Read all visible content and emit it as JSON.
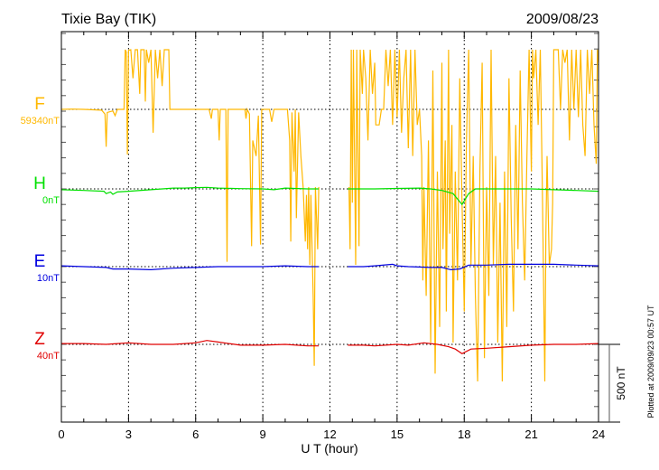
{
  "chart_data": {
    "type": "line",
    "title": "Tixie Bay (TIK)",
    "date": "2009/08/23",
    "xlabel": "U T (hour)",
    "xlim": [
      0,
      24
    ],
    "xticks": [
      "0",
      "3",
      "6",
      "9",
      "12",
      "15",
      "18",
      "21",
      "24"
    ],
    "scale_bar_label": "500 nT",
    "plotted_note": "Plotted at 2009/09/23 00:57 UT",
    "grid": true,
    "series": [
      {
        "name": "F",
        "baseline_label": "59340nT",
        "color": "#FFB800",
        "points": [
          [
            0,
            0
          ],
          [
            0.5,
            2
          ],
          [
            1,
            0
          ],
          [
            1.8,
            -5
          ],
          [
            1.95,
            -30
          ],
          [
            2.0,
            -240
          ],
          [
            2.05,
            -20
          ],
          [
            2.3,
            -10
          ],
          [
            2.4,
            -40
          ],
          [
            2.5,
            0
          ],
          [
            2.8,
            0
          ],
          [
            2.85,
            384
          ],
          [
            2.9,
            370
          ],
          [
            2.95,
            -290
          ],
          [
            3.0,
            380
          ],
          [
            3.1,
            384
          ],
          [
            3.2,
            200
          ],
          [
            3.3,
            384
          ],
          [
            3.4,
            384
          ],
          [
            3.5,
            100
          ],
          [
            3.55,
            384
          ],
          [
            3.7,
            384
          ],
          [
            3.75,
            50
          ],
          [
            3.8,
            384
          ],
          [
            3.9,
            300
          ],
          [
            4.0,
            384
          ],
          [
            4.1,
            -150
          ],
          [
            4.2,
            384
          ],
          [
            4.3,
            200
          ],
          [
            4.4,
            384
          ],
          [
            4.5,
            150
          ],
          [
            4.6,
            384
          ],
          [
            4.8,
            384
          ],
          [
            4.85,
            0
          ],
          [
            5,
            0
          ],
          [
            6,
            0
          ],
          [
            6.6,
            0
          ],
          [
            6.7,
            -60
          ],
          [
            6.75,
            0
          ],
          [
            7.0,
            0
          ],
          [
            7.05,
            -200
          ],
          [
            7.1,
            0
          ],
          [
            7.35,
            0
          ],
          [
            7.4,
            -980
          ],
          [
            7.45,
            0
          ],
          [
            8.2,
            0
          ],
          [
            8.25,
            -60
          ],
          [
            8.3,
            0
          ],
          [
            8.4,
            -30
          ],
          [
            8.5,
            -880
          ],
          [
            8.55,
            -200
          ],
          [
            8.7,
            -300
          ],
          [
            8.8,
            -40
          ],
          [
            8.9,
            -870
          ],
          [
            8.95,
            0
          ],
          [
            9.3,
            0
          ],
          [
            9.4,
            -80
          ],
          [
            9.5,
            0
          ],
          [
            10.1,
            0
          ],
          [
            10.2,
            -200
          ],
          [
            10.25,
            -850
          ],
          [
            10.3,
            -20
          ],
          [
            10.4,
            -400
          ],
          [
            10.45,
            0
          ],
          [
            10.5,
            -700
          ],
          [
            10.6,
            -20
          ],
          [
            10.7,
            -300
          ],
          [
            10.8,
            -500
          ],
          [
            10.9,
            -850
          ],
          [
            10.95,
            -550
          ],
          [
            11.0,
            -900
          ],
          [
            11.05,
            -500
          ],
          [
            11.1,
            -1000
          ],
          [
            11.15,
            -550
          ],
          [
            11.25,
            -1200
          ],
          [
            11.3,
            -1650
          ],
          [
            11.35,
            -500
          ],
          [
            11.45,
            -900
          ],
          [
            11.5,
            -500
          ],
          null,
          [
            12.85,
            -500
          ],
          [
            12.9,
            -900
          ],
          [
            12.95,
            384
          ],
          [
            13.0,
            -600
          ],
          [
            13.05,
            384
          ],
          [
            13.15,
            -1000
          ],
          [
            13.2,
            384
          ],
          [
            13.3,
            -880
          ],
          [
            13.35,
            384
          ],
          [
            13.45,
            100
          ],
          [
            13.5,
            384
          ],
          [
            13.6,
            200
          ],
          [
            13.7,
            -200
          ],
          [
            13.8,
            384
          ],
          [
            13.9,
            100
          ],
          [
            14.0,
            300
          ],
          [
            14.05,
            -100
          ],
          [
            14.2,
            -100
          ],
          [
            14.3,
            0
          ],
          [
            14.4,
            0
          ],
          [
            14.5,
            384
          ],
          [
            14.6,
            150
          ],
          [
            14.7,
            384
          ],
          [
            14.8,
            -100
          ],
          [
            14.9,
            384
          ],
          [
            15.0,
            -50
          ],
          [
            15.1,
            384
          ],
          [
            15.2,
            -150
          ],
          [
            15.3,
            200
          ],
          [
            15.4,
            384
          ],
          [
            15.5,
            -250
          ],
          [
            15.6,
            384
          ],
          [
            15.7,
            -300
          ],
          [
            15.8,
            384
          ],
          [
            15.9,
            -100
          ],
          [
            16.0,
            0
          ],
          [
            16.1,
            -300
          ],
          [
            16.15,
            -1100
          ],
          [
            16.2,
            -500
          ],
          [
            16.3,
            -1200
          ],
          [
            16.4,
            -200
          ],
          [
            16.5,
            -1500
          ],
          [
            16.6,
            250
          ],
          [
            16.7,
            -1700
          ],
          [
            16.8,
            -400
          ],
          [
            16.9,
            -1400
          ],
          [
            17.0,
            300
          ],
          [
            17.05,
            -900
          ],
          [
            17.15,
            -200
          ],
          [
            17.2,
            -1300
          ],
          [
            17.3,
            384
          ],
          [
            17.35,
            -800
          ],
          [
            17.45,
            -100
          ],
          [
            17.5,
            -1500
          ],
          [
            17.6,
            -400
          ],
          [
            17.7,
            -1100
          ],
          [
            17.8,
            200
          ],
          [
            17.9,
            -600
          ],
          [
            18.0,
            -1300
          ],
          [
            18.1,
            -200
          ],
          [
            18.2,
            384
          ],
          [
            18.3,
            -1000
          ],
          [
            18.4,
            -300
          ],
          [
            18.5,
            -1200
          ],
          [
            18.6,
            -1750
          ],
          [
            18.7,
            -400
          ],
          [
            18.8,
            300
          ],
          [
            18.9,
            -1600
          ],
          [
            19.0,
            -500
          ],
          [
            19.1,
            -1200
          ],
          [
            19.2,
            384
          ],
          [
            19.3,
            -1000
          ],
          [
            19.4,
            -300
          ],
          [
            19.5,
            -1500
          ],
          [
            19.6,
            -600
          ],
          [
            19.7,
            -1750
          ],
          [
            19.8,
            -400
          ],
          [
            19.9,
            -1400
          ],
          [
            20.0,
            200
          ],
          [
            20.1,
            -700
          ],
          [
            20.2,
            -1300
          ],
          [
            20.3,
            -100
          ],
          [
            20.4,
            -900
          ],
          [
            20.5,
            250
          ],
          [
            20.6,
            -600
          ],
          [
            20.7,
            -1100
          ],
          [
            20.8,
            -300
          ],
          [
            20.9,
            384
          ],
          [
            21.0,
            -400
          ],
          [
            21.05,
            384
          ],
          [
            21.1,
            200
          ],
          [
            21.2,
            384
          ],
          [
            21.3,
            -100
          ],
          [
            21.4,
            384
          ],
          [
            21.5,
            -600
          ],
          [
            21.6,
            -1750
          ],
          [
            21.65,
            -800
          ],
          [
            21.7,
            -300
          ],
          [
            21.8,
            -1000
          ],
          [
            21.9,
            -900
          ],
          [
            21.95,
            -600
          ],
          [
            22.0,
            384
          ],
          [
            22.2,
            384
          ],
          [
            22.3,
            0
          ],
          [
            22.4,
            384
          ],
          [
            22.5,
            300
          ],
          [
            22.6,
            384
          ],
          [
            22.7,
            -200
          ],
          [
            22.8,
            384
          ],
          [
            22.9,
            0
          ],
          [
            23.0,
            384
          ],
          [
            23.1,
            -50
          ],
          [
            23.2,
            384
          ],
          [
            23.3,
            -100
          ],
          [
            23.4,
            -300
          ],
          [
            23.5,
            384
          ],
          [
            23.6,
            100
          ],
          [
            23.7,
            384
          ],
          [
            23.8,
            -100
          ],
          [
            23.9,
            -350
          ],
          [
            23.95,
            384
          ],
          [
            24,
            300
          ]
        ]
      },
      {
        "name": "H",
        "baseline_label": "0nT",
        "color": "#00E000",
        "points": [
          [
            0,
            -5
          ],
          [
            1,
            -10
          ],
          [
            1.9,
            -15
          ],
          [
            2.0,
            -30
          ],
          [
            2.2,
            -20
          ],
          [
            2.3,
            -35
          ],
          [
            2.5,
            -20
          ],
          [
            3,
            -15
          ],
          [
            4,
            -5
          ],
          [
            5,
            5
          ],
          [
            5.5,
            5
          ],
          [
            6,
            8
          ],
          [
            6.5,
            10
          ],
          [
            7,
            5
          ],
          [
            8,
            2
          ],
          [
            9,
            0
          ],
          [
            9.5,
            -5
          ],
          [
            10,
            5
          ],
          [
            11,
            0
          ],
          [
            11.5,
            0
          ],
          null,
          [
            12.8,
            0
          ],
          [
            14,
            0
          ],
          [
            15,
            3
          ],
          [
            16,
            5
          ],
          [
            16.5,
            0
          ],
          [
            17,
            -10
          ],
          [
            17.5,
            -30
          ],
          [
            17.9,
            -100
          ],
          [
            18.2,
            -30
          ],
          [
            18.5,
            0
          ],
          [
            20,
            0
          ],
          [
            21,
            0
          ],
          [
            22,
            -5
          ],
          [
            23,
            -10
          ],
          [
            24,
            -15
          ]
        ]
      },
      {
        "name": "E",
        "baseline_label": "10nT",
        "color": "#0000E0",
        "points": [
          [
            0,
            5
          ],
          [
            1,
            0
          ],
          [
            2,
            -5
          ],
          [
            2.3,
            -15
          ],
          [
            3,
            -15
          ],
          [
            4,
            -20
          ],
          [
            5,
            -10
          ],
          [
            6,
            -5
          ],
          [
            7,
            0
          ],
          [
            8,
            0
          ],
          [
            9,
            0
          ],
          [
            10,
            5
          ],
          [
            11,
            0
          ],
          [
            11.5,
            0
          ],
          null,
          [
            12.8,
            0
          ],
          [
            13.5,
            0
          ],
          [
            14,
            5
          ],
          [
            14.8,
            15
          ],
          [
            15,
            5
          ],
          [
            15.5,
            0
          ],
          [
            16.5,
            -5
          ],
          [
            17,
            -5
          ],
          [
            17.4,
            -20
          ],
          [
            17.8,
            -15
          ],
          [
            18.2,
            10
          ],
          [
            19,
            10
          ],
          [
            20,
            15
          ],
          [
            21,
            15
          ],
          [
            22,
            15
          ],
          [
            23,
            10
          ],
          [
            24,
            5
          ]
        ]
      },
      {
        "name": "Z",
        "baseline_label": "40nT",
        "color": "#E00000",
        "points": [
          [
            0,
            5
          ],
          [
            1,
            5
          ],
          [
            2,
            0
          ],
          [
            3,
            10
          ],
          [
            4,
            0
          ],
          [
            5,
            0
          ],
          [
            6,
            10
          ],
          [
            6.5,
            25
          ],
          [
            7,
            15
          ],
          [
            8,
            -5
          ],
          [
            9,
            -5
          ],
          [
            10,
            0
          ],
          [
            11,
            -10
          ],
          [
            11.5,
            -10
          ],
          null,
          [
            12.8,
            -5
          ],
          [
            13.5,
            -5
          ],
          [
            14,
            -10
          ],
          [
            15,
            0
          ],
          [
            15.5,
            -5
          ],
          [
            16.2,
            10
          ],
          [
            16.8,
            0
          ],
          [
            17.3,
            -15
          ],
          [
            17.6,
            -30
          ],
          [
            17.9,
            -60
          ],
          [
            18.3,
            -30
          ],
          [
            19,
            -25
          ],
          [
            20,
            -15
          ],
          [
            21,
            -5
          ],
          [
            22,
            0
          ],
          [
            23,
            0
          ],
          [
            24,
            5
          ]
        ]
      }
    ]
  }
}
